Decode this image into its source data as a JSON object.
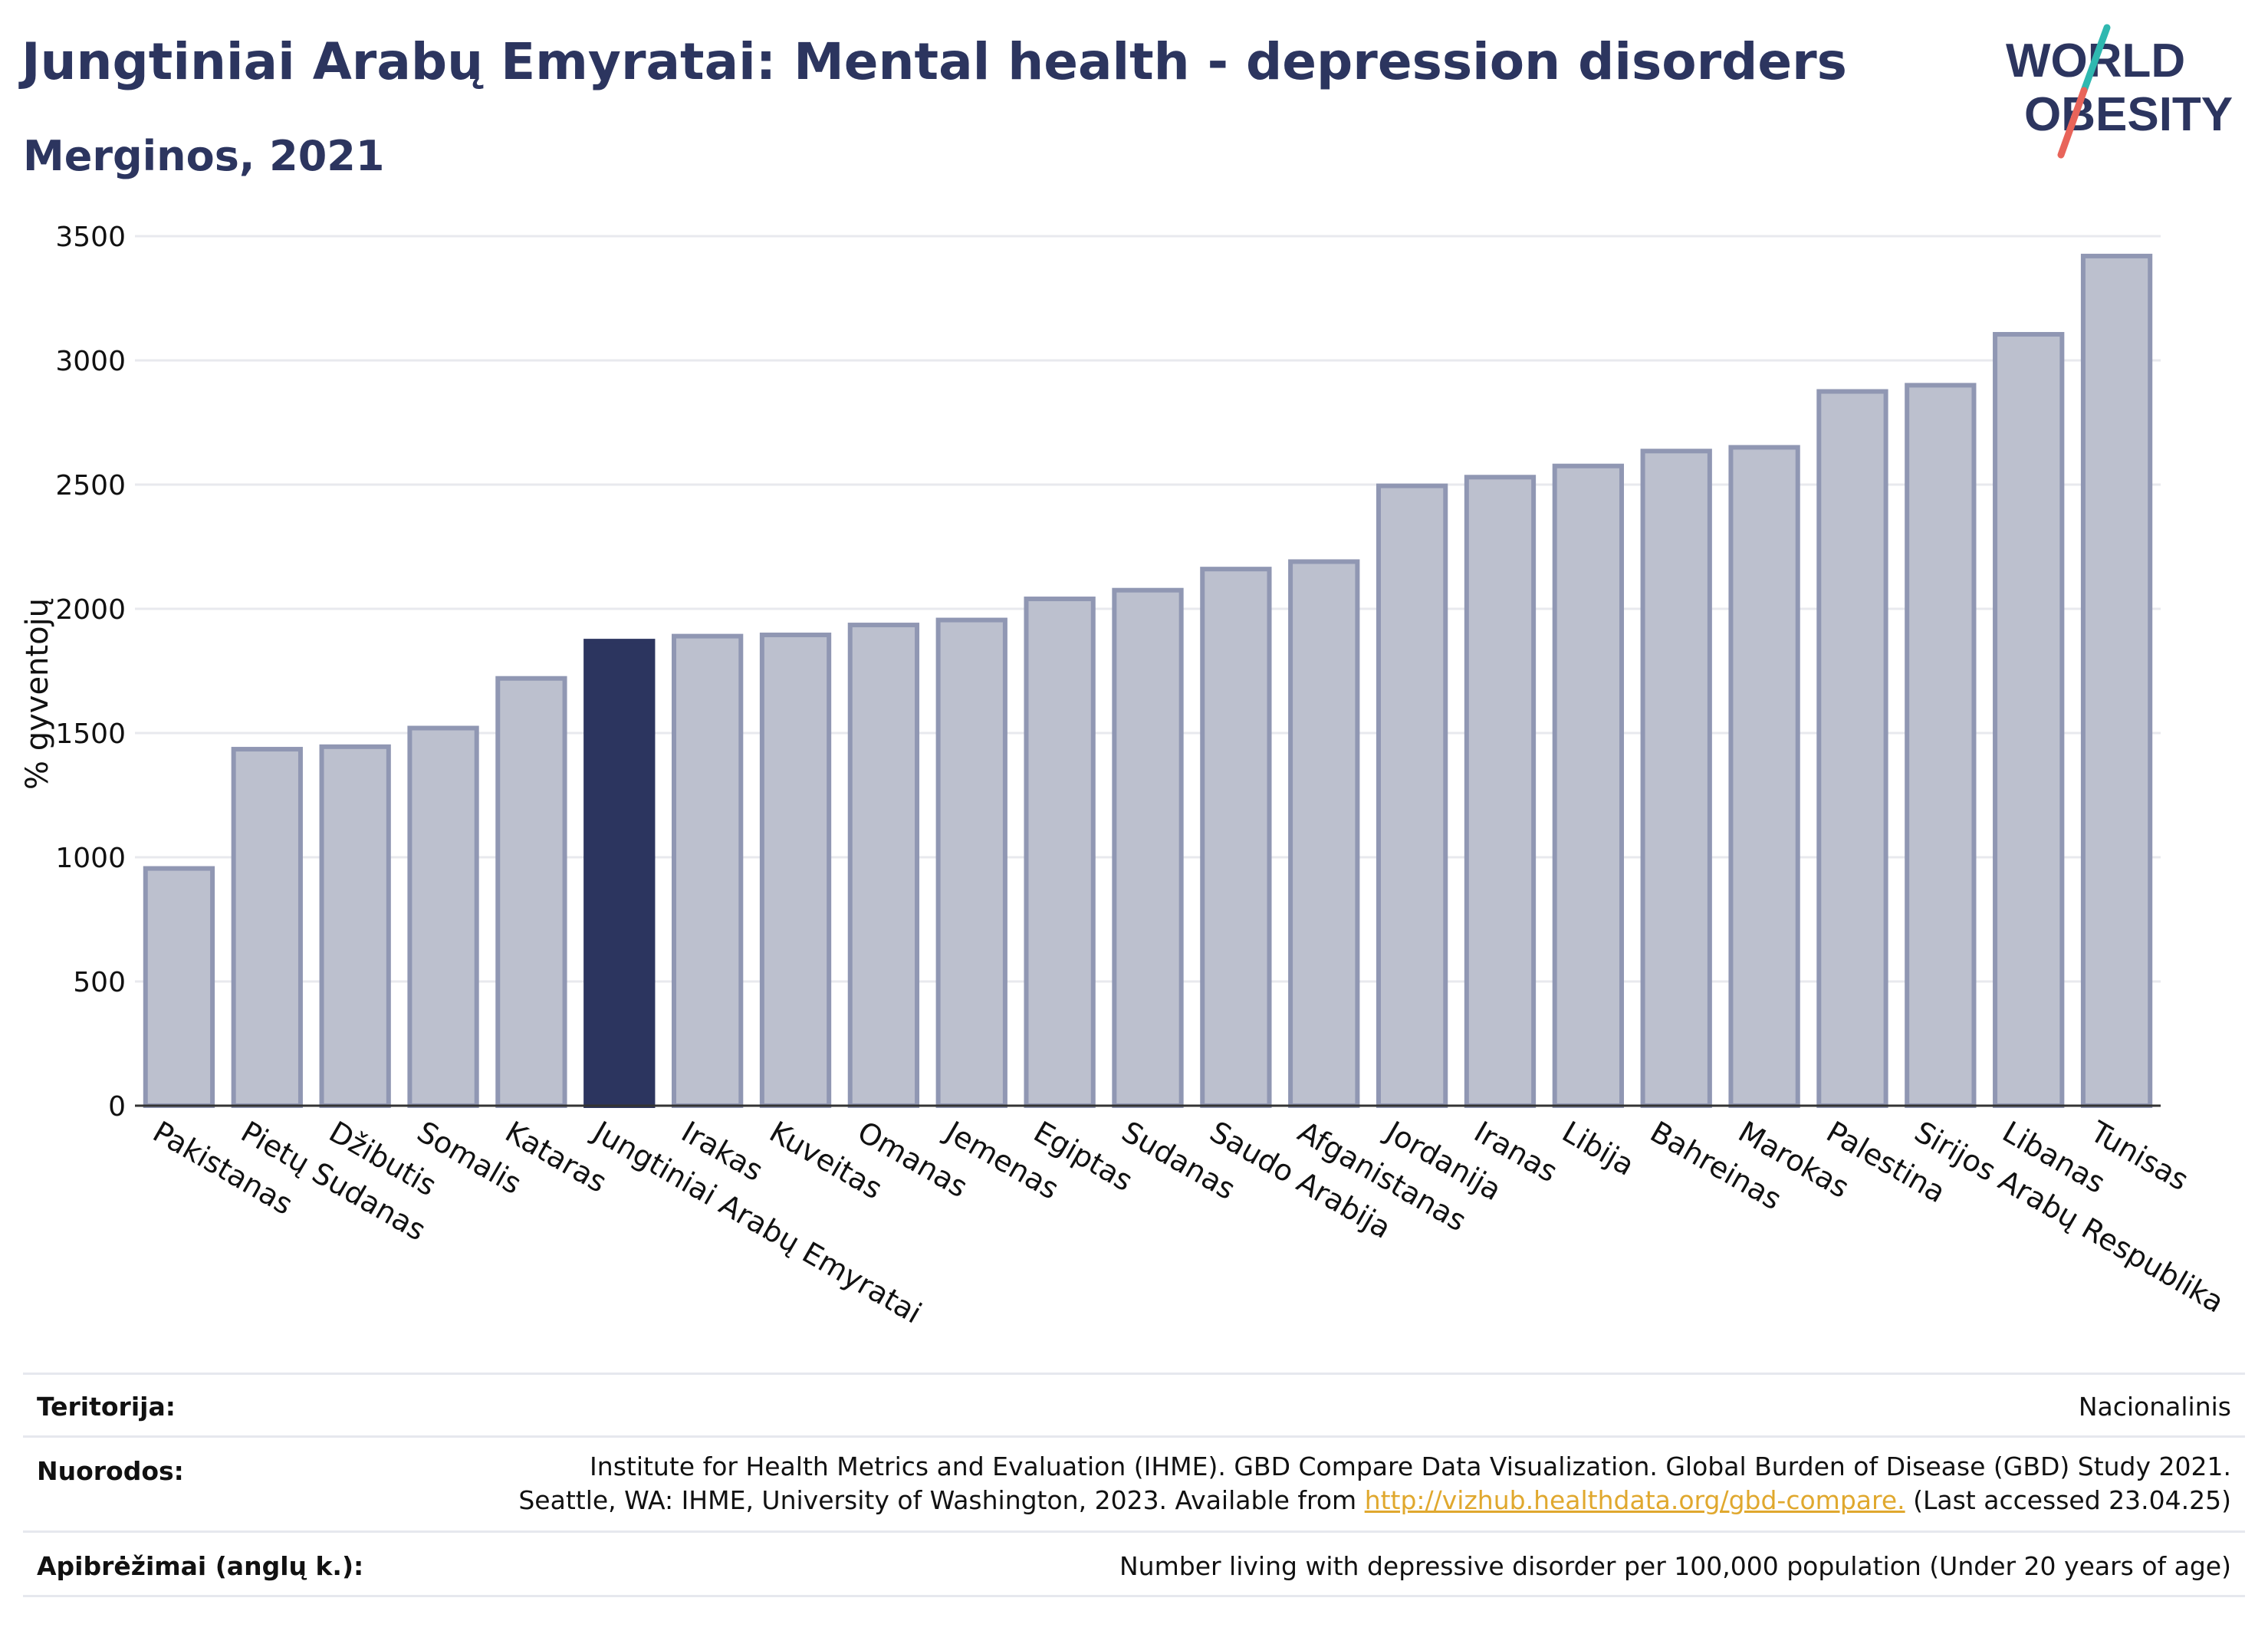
{
  "header": {
    "title": "Jungtiniai Arabų Emyratai: Mental health - depression disorders",
    "subtitle": "Merginos, 2021"
  },
  "logo": {
    "line1": "WORLD",
    "line2": "OBESITY"
  },
  "colors": {
    "highlight": "#2c355f",
    "bar": "#bcc0ce",
    "bar_border": "#9097b3",
    "title": "#2c355f",
    "link": "#e0a82e"
  },
  "chart_data": {
    "type": "bar",
    "ylabel": "% gyventojų",
    "ylim": [
      0,
      3500
    ],
    "yticks": [
      0,
      500,
      1000,
      1500,
      2000,
      2500,
      3000,
      3500
    ],
    "grid": true,
    "highlight": "Jungtiniai Arabų Emyratai",
    "categories": [
      "Pakistanas",
      "Pietų Sudanas",
      "Džibutis",
      "Somalis",
      "Kataras",
      "Jungtiniai Arabų Emyratai",
      "Irakas",
      "Kuveitas",
      "Omanas",
      "Jemenas",
      "Egiptas",
      "Sudanas",
      "Saudo Arabija",
      "Afganistanas",
      "Jordanija",
      "Iranas",
      "Libija",
      "Bahreinas",
      "Marokas",
      "Palestina",
      "Sirijos Arabų Respublika",
      "Libanas",
      "Tunisas"
    ],
    "values": [
      955,
      1435,
      1445,
      1520,
      1720,
      1870,
      1890,
      1895,
      1935,
      1955,
      2040,
      2075,
      2160,
      2190,
      2495,
      2530,
      2575,
      2635,
      2650,
      2875,
      2900,
      3105,
      3420
    ]
  },
  "meta": {
    "territory_label": "Teritorija:",
    "territory_value": "Nacionalinis",
    "refs_label": "Nuorodos:",
    "refs_line1": "Institute for Health Metrics and Evaluation (IHME). GBD Compare Data Visualization. Global Burden of Disease (GBD) Study 2021.",
    "refs_line2_prefix": "Seattle, WA: IHME, University of Washington, 2023. Available from ",
    "refs_link": "http://vizhub.healthdata.org/gbd-compare.",
    "refs_line2_suffix": " (Last accessed 23.04.25)",
    "defs_label": "Apibrėžimai (anglų k.):",
    "defs_value": "Number living with depressive disorder per 100,000 population (Under 20 years of age)"
  }
}
